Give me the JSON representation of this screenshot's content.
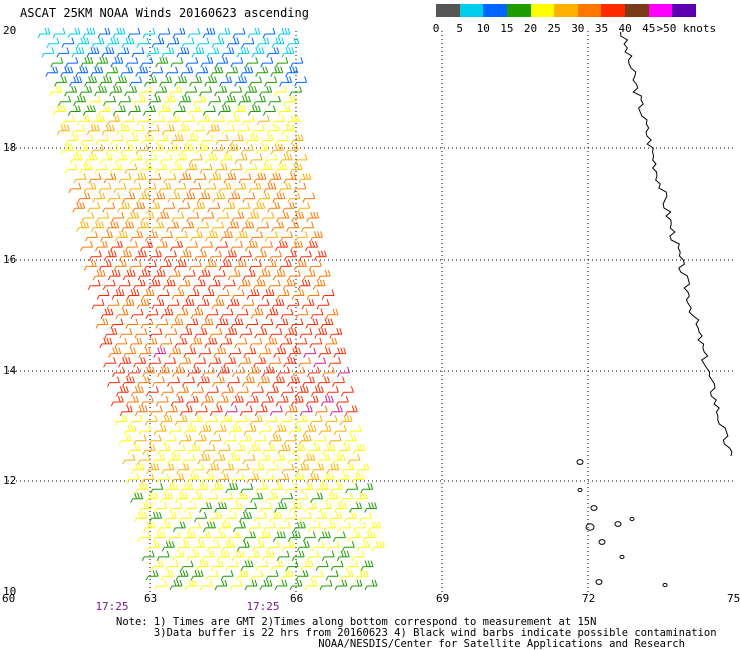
{
  "title": "ASCAT 25KM NOAA Winds 20160623 ascending",
  "legend": {
    "labels": [
      "0",
      "5",
      "10",
      "15",
      "20",
      "25",
      "30",
      "35",
      "40",
      "45",
      ">50 knots"
    ],
    "colors": [
      "#555555",
      "#00ccee",
      "#0066ff",
      "#1f9d00",
      "#ffff00",
      "#ffb000",
      "#ff7700",
      "#ff2a00",
      "#7a3b1a",
      "#ff00ff",
      "#5a00b0"
    ]
  },
  "axes": {
    "lat_ticks": [
      "20",
      "18",
      "16",
      "14",
      "12",
      "10"
    ],
    "lon_ticks": [
      "60",
      "63",
      "66",
      "69",
      "72",
      "75"
    ]
  },
  "times": [
    "17:25",
    "17:25"
  ],
  "notes": [
    "Note: 1) Times are GMT 2)Times along bottom correspond to measurement at 15N",
    "      3)Data buffer is 22 hrs from 20160623 4) Black wind barbs indicate possible contamination",
    "                                NOAA/NESDIS/Center for Satellite Applications and Research"
  ]
}
